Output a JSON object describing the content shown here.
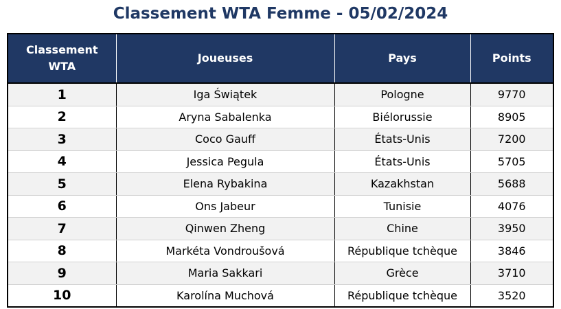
{
  "title": "Classement WTA Femme - 05/02/2024",
  "columns": {
    "rank": "Classement WTA",
    "player": "Joueuses",
    "country": "Pays",
    "points": "Points"
  },
  "colors": {
    "title": "#1f3864",
    "header_bg": "#203864",
    "row_alt": "#f2f2f2"
  },
  "rows": [
    {
      "rank": "1",
      "player": "Iga Świątek",
      "country": "Pologne",
      "points": "9770"
    },
    {
      "rank": "2",
      "player": "Aryna Sabalenka",
      "country": "Biélorussie",
      "points": "8905"
    },
    {
      "rank": "3",
      "player": "Coco Gauff",
      "country": "États-Unis",
      "points": "7200"
    },
    {
      "rank": "4",
      "player": "Jessica Pegula",
      "country": "États-Unis",
      "points": "5705"
    },
    {
      "rank": "5",
      "player": "Elena Rybakina",
      "country": "Kazakhstan",
      "points": "5688"
    },
    {
      "rank": "6",
      "player": "Ons Jabeur",
      "country": "Tunisie",
      "points": "4076"
    },
    {
      "rank": "7",
      "player": "Qinwen Zheng",
      "country": "Chine",
      "points": "3950"
    },
    {
      "rank": "8",
      "player": "Markéta Vondroušová",
      "country": "République tchèque",
      "points": "3846"
    },
    {
      "rank": "9",
      "player": "Maria Sakkari",
      "country": "Grèce",
      "points": "3710"
    },
    {
      "rank": "10",
      "player": "Karolína Muchová",
      "country": "République tchèque",
      "points": "3520"
    }
  ]
}
